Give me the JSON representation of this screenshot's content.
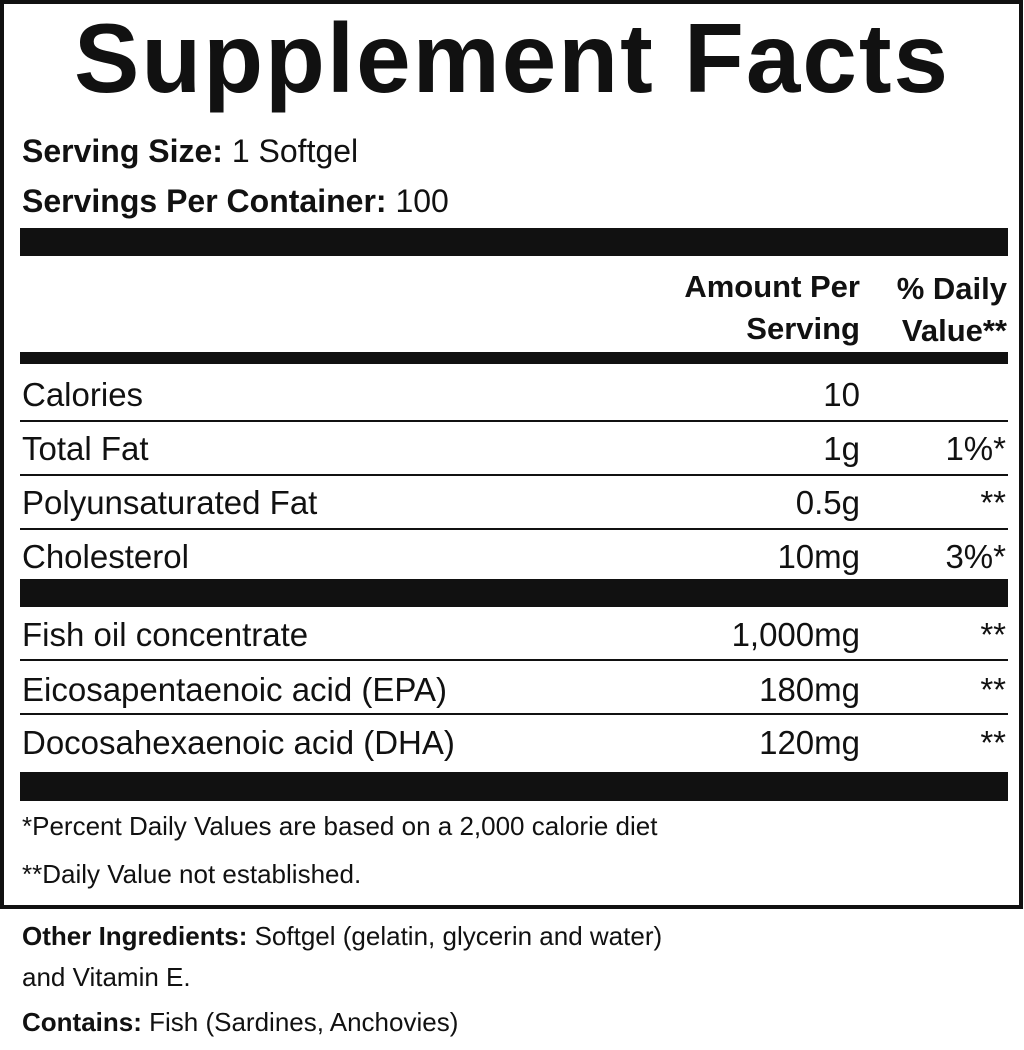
{
  "title": "Supplement Facts",
  "serving_size": {
    "label": "Serving Size:",
    "value": "1 Softgel"
  },
  "servings_per_container": {
    "label": "Servings Per Container:",
    "value": "100"
  },
  "header": {
    "amount_line1": "Amount Per",
    "amount_line2": "Serving",
    "dv_line1": "% Daily",
    "dv_line2": "Value**"
  },
  "rows": [
    {
      "name": "Calories",
      "amount": "10",
      "dv": ""
    },
    {
      "name": "Total Fat",
      "amount": "1g",
      "dv": "1%*"
    },
    {
      "name": "Polyunsaturated Fat",
      "amount": "0.5g",
      "dv": "**"
    },
    {
      "name": "Cholesterol",
      "amount": "10mg",
      "dv": "3%*"
    },
    {
      "name": "Fish oil concentrate",
      "amount": "1,000mg",
      "dv": "**"
    },
    {
      "name": "Eicosapentaenoic acid (EPA)",
      "amount": "180mg",
      "dv": "**"
    },
    {
      "name": "Docosahexaenoic acid (DHA)",
      "amount": "120mg",
      "dv": "**"
    }
  ],
  "footnotes": [
    "*Percent Daily Values are based on a 2,000 calorie diet",
    "**Daily Value not established."
  ],
  "other_ingredients": {
    "label": "Other Ingredients:",
    "value": "Softgel (gelatin, glycerin and water)",
    "value_line2": "and Vitamin E."
  },
  "contains": {
    "label": "Contains:",
    "value": "Fish (Sardines, Anchovies)"
  }
}
